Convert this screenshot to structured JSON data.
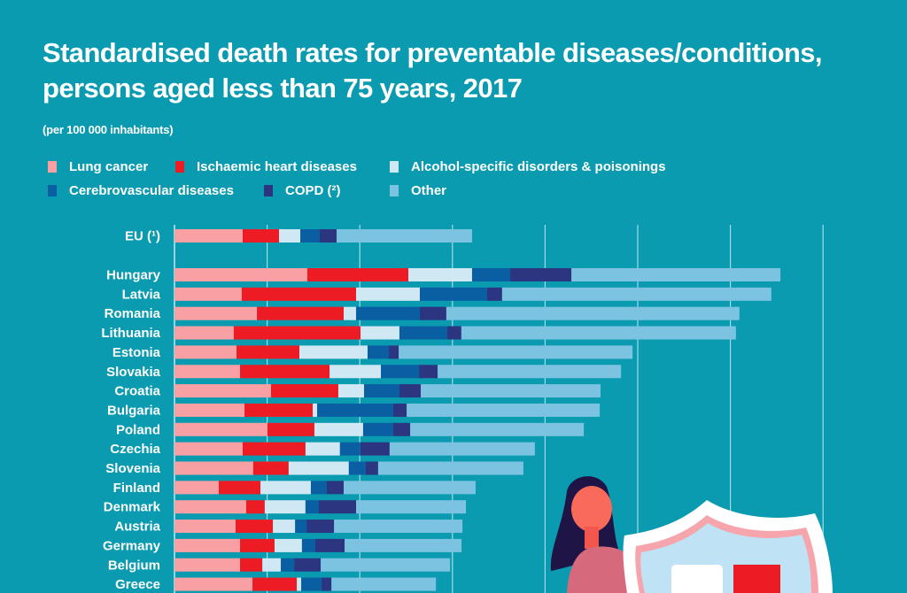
{
  "chart_data": {
    "type": "bar",
    "orientation": "horizontal",
    "stacked": true,
    "title": "Standardised death rates for preventable diseases/conditions,\npersons aged less than 75 years, 2017",
    "subtitle": "(per 100 000 inhabitants)",
    "xlabel": "",
    "ylabel": "",
    "xlim": [
      0,
      350
    ],
    "grid": true,
    "grid_step": 50,
    "legend_position": "top",
    "categories": [
      "EU (¹)",
      "Hungary",
      "Latvia",
      "Romania",
      "Lithuania",
      "Estonia",
      "Slovakia",
      "Croatia",
      "Bulgaria",
      "Poland",
      "Czechia",
      "Slovenia",
      "Finland",
      "Denmark",
      "Austria",
      "Germany",
      "Belgium",
      "Greece"
    ],
    "series": [
      {
        "name": "Lung cancer",
        "color": "#f9a0a4",
        "values": [
          36.8,
          71.7,
          36.3,
          44.5,
          32.0,
          33.5,
          35.4,
          52.1,
          37.8,
          50.2,
          36.8,
          42.5,
          23.9,
          38.7,
          33.0,
          35.4,
          35.4,
          42.1
        ]
      },
      {
        "name": "Ischaemic heart diseases",
        "color": "#ed1c24",
        "values": [
          19.6,
          54.5,
          61.7,
          46.8,
          68.4,
          33.9,
          48.3,
          36.3,
          36.8,
          25.3,
          33.9,
          19.1,
          22.5,
          10.0,
          20.1,
          18.6,
          12.0,
          23.9
        ]
      },
      {
        "name": "Alcohol-specific disorders & poisonings",
        "color": "#cfe8f3",
        "values": [
          11.5,
          34.4,
          34.4,
          6.7,
          21.0,
          36.8,
          27.7,
          13.9,
          2.4,
          26.3,
          18.6,
          32.5,
          27.2,
          22.0,
          12.0,
          14.8,
          10.0,
          2.4
        ]
      },
      {
        "name": "Cerebrovascular diseases",
        "color": "#0a5fa3",
        "values": [
          10.5,
          20.6,
          36.3,
          34.4,
          25.8,
          11.5,
          20.6,
          19.1,
          41.1,
          16.3,
          11.0,
          9.1,
          8.6,
          7.2,
          6.2,
          7.2,
          7.2,
          11.0
        ]
      },
      {
        "name": "COPD (²)",
        "color": "#2c3580",
        "values": [
          9.1,
          33.0,
          8.1,
          14.3,
          7.6,
          5.3,
          10.0,
          11.5,
          7.2,
          9.1,
          15.8,
          6.7,
          9.1,
          20.1,
          14.8,
          15.8,
          14.3,
          5.3
        ]
      },
      {
        "name": "Other",
        "color": "#7cc3e2",
        "values": [
          73.1,
          112.8,
          145.3,
          158.2,
          148.2,
          126.2,
          99.0,
          97.0,
          104.2,
          93.7,
          78.4,
          78.4,
          71.2,
          59.3,
          69.3,
          63.1,
          69.8,
          56.4
        ]
      }
    ]
  },
  "colors": {
    "background": "#0a9bb0",
    "gridline": "#9fdde8",
    "text": "#ffffff"
  }
}
